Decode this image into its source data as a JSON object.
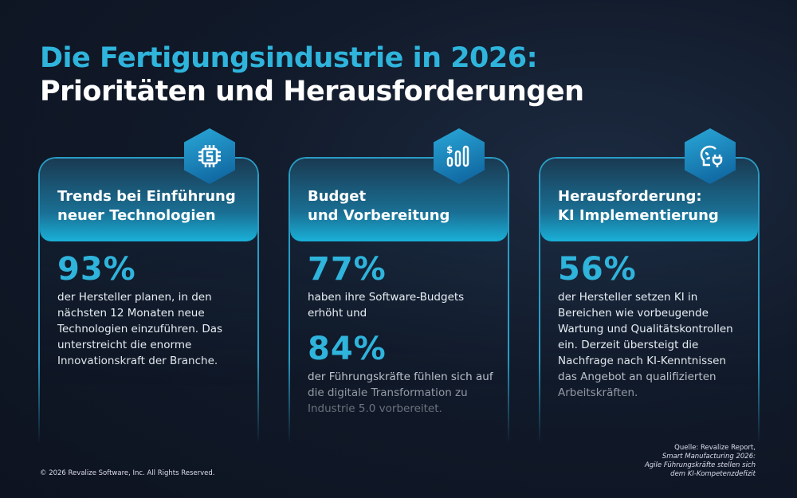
{
  "title": {
    "line1": "Die Fertigungsindustrie in 2026:",
    "line2": "Prioritäten und Herausforderungen"
  },
  "cards": [
    {
      "icon": "chip-icon",
      "heading1": "Trends bei Einführung",
      "heading2": "neuer Technologien",
      "stats": [
        {
          "value": "93%",
          "text": "der Hersteller planen, in den nächsten 12 Monaten neue Technologien einzuführen. Das unterstreicht die enorme Innovationskraft der Branche."
        }
      ]
    },
    {
      "icon": "budget-chart-icon",
      "heading1": "Budget",
      "heading2": "und Vorbereitung",
      "stats": [
        {
          "value": "77%",
          "text": "haben ihre Software-Budgets erhöht und"
        },
        {
          "value": "84%",
          "text": "der Führungskräfte fühlen sich auf die digitale Transformation zu Industrie 5.0 vorbereitet."
        }
      ]
    },
    {
      "icon": "ai-brain-icon",
      "heading1": "Herausforderung:",
      "heading2": "KI Implementierung",
      "stats": [
        {
          "value": "56%",
          "text": "der Hersteller setzen KI in Bereichen wie vorbeugende Wartung und Qualitätskontrollen ein. Derzeit übersteigt die Nachfrage nach KI-Kenntnissen das Angebot an qualifizierten Arbeitskräften."
        }
      ]
    }
  ],
  "footer": {
    "copyright": "© 2026 Revalize Software, Inc. All Rights Reserved.",
    "source1": "Quelle: Revalize Report,",
    "source2": "Smart Manufacturing 2026:",
    "source3": "Agile Führungskräfte stellen sich",
    "source4": "dem KI-Kompetenzdefizit"
  },
  "colors": {
    "accent": "#2fb4dc",
    "background": "#111a2a"
  }
}
